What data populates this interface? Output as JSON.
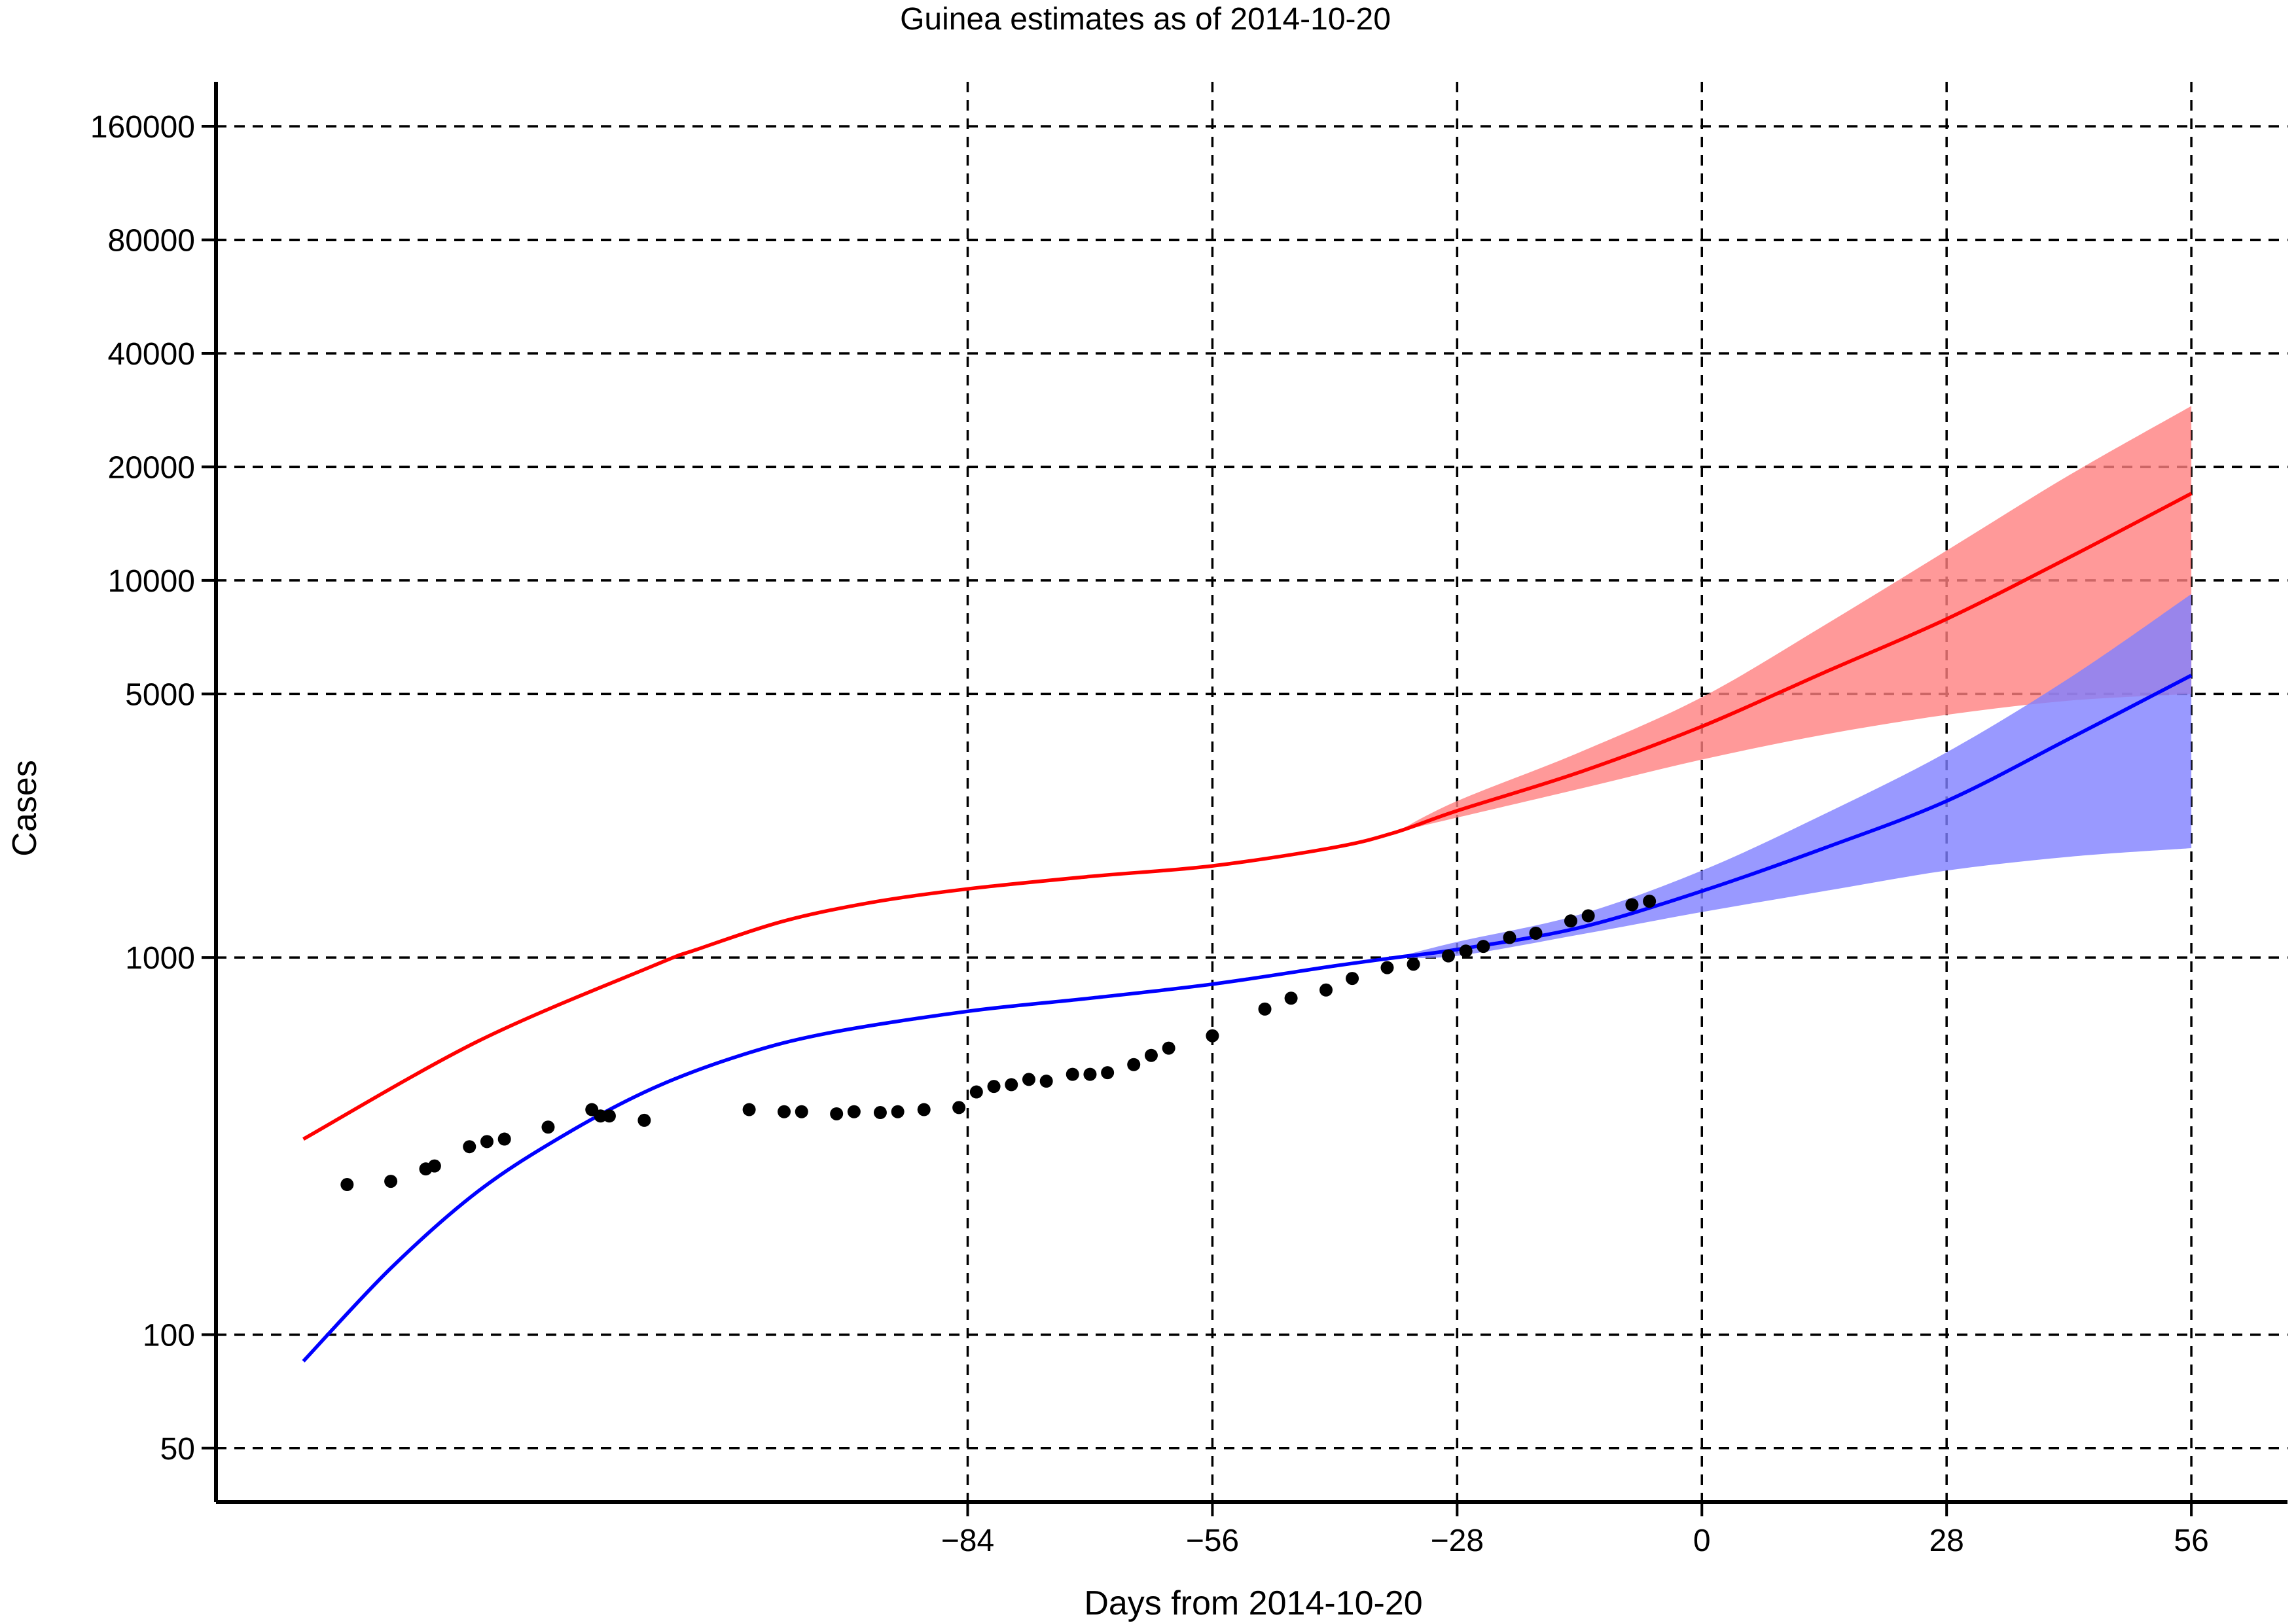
{
  "chart_data": {
    "type": "line",
    "title": "Guinea estimates as of 2014-10-20",
    "xlabel": "Days from 2014-10-20",
    "ylabel": "Cases",
    "xlim": [
      -170,
      67
    ],
    "ylim": [
      36,
      210000
    ],
    "y_scale": "log",
    "grid": true,
    "x_ticks": [
      -84,
      -56,
      -28,
      0,
      28,
      56
    ],
    "y_ticks": [
      50,
      100,
      1000,
      5000,
      10000,
      20000,
      40000,
      80000,
      160000
    ],
    "colors": {
      "upper_line": "#ff0000",
      "upper_band": "#ff8080",
      "lower_line": "#0000ff",
      "lower_band": "#8080ff",
      "points": "#000000",
      "grid": "#000000"
    },
    "series": [
      {
        "kind": "line",
        "color": "#ff0000",
        "x": [
          -160,
          -140,
          -120,
          -115,
          -105,
          -95,
          -84,
          -70,
          -56,
          -42,
          -35,
          -28,
          -14,
          0,
          14,
          28,
          42,
          56
        ],
        "y": [
          330,
          600,
          950,
          1050,
          1250,
          1400,
          1520,
          1640,
          1750,
          1960,
          2150,
          2450,
          3100,
          4100,
          5700,
          7900,
          11500,
          17000
        ]
      },
      {
        "kind": "band",
        "color": "#ff8080",
        "x": [
          -35,
          -28,
          -14,
          0,
          14,
          28,
          42,
          56
        ],
        "upper": [
          2150,
          2600,
          3500,
          4900,
          7600,
          12000,
          19000,
          29000
        ],
        "lower": [
          2150,
          2350,
          2800,
          3350,
          3900,
          4400,
          4800,
          5000
        ]
      },
      {
        "kind": "line",
        "color": "#0000ff",
        "x": [
          -160,
          -150,
          -140,
          -130,
          -120,
          -110,
          -100,
          -84,
          -70,
          -56,
          -42,
          -35,
          -28,
          -14,
          0,
          14,
          28,
          42,
          56
        ],
        "y": [
          85,
          150,
          240,
          340,
          450,
          550,
          630,
          720,
          780,
          850,
          950,
          1000,
          1050,
          1200,
          1500,
          1950,
          2600,
          3800,
          5600
        ]
      },
      {
        "kind": "band",
        "color": "#8080ff",
        "x": [
          -35,
          -28,
          -14,
          0,
          14,
          28,
          42,
          56
        ],
        "upper": [
          1000,
          1100,
          1300,
          1700,
          2400,
          3500,
          5500,
          9200
        ],
        "lower": [
          1000,
          1010,
          1150,
          1320,
          1500,
          1700,
          1850,
          1950
        ]
      },
      {
        "kind": "scatter",
        "color": "#000000",
        "x": [
          -155,
          -150,
          -146,
          -145,
          -141,
          -139,
          -137,
          -132,
          -127,
          -126,
          -125,
          -121,
          -109,
          -105,
          -103,
          -99,
          -97,
          -94,
          -92,
          -89,
          -85,
          -83,
          -81,
          -79,
          -77,
          -75,
          -72,
          -70,
          -68,
          -65,
          -63,
          -61,
          -56,
          -50,
          -47,
          -43,
          -40,
          -36,
          -33,
          -29,
          -27,
          -25,
          -22,
          -19,
          -15,
          -13,
          -8,
          -6
        ],
        "y": [
          250,
          255,
          275,
          280,
          315,
          325,
          330,
          355,
          395,
          380,
          380,
          370,
          395,
          390,
          390,
          385,
          390,
          388,
          390,
          395,
          400,
          440,
          455,
          460,
          475,
          470,
          490,
          490,
          495,
          520,
          550,
          575,
          620,
          730,
          780,
          820,
          880,
          940,
          960,
          1010,
          1040,
          1070,
          1130,
          1160,
          1250,
          1290,
          1380,
          1410
        ]
      }
    ]
  }
}
